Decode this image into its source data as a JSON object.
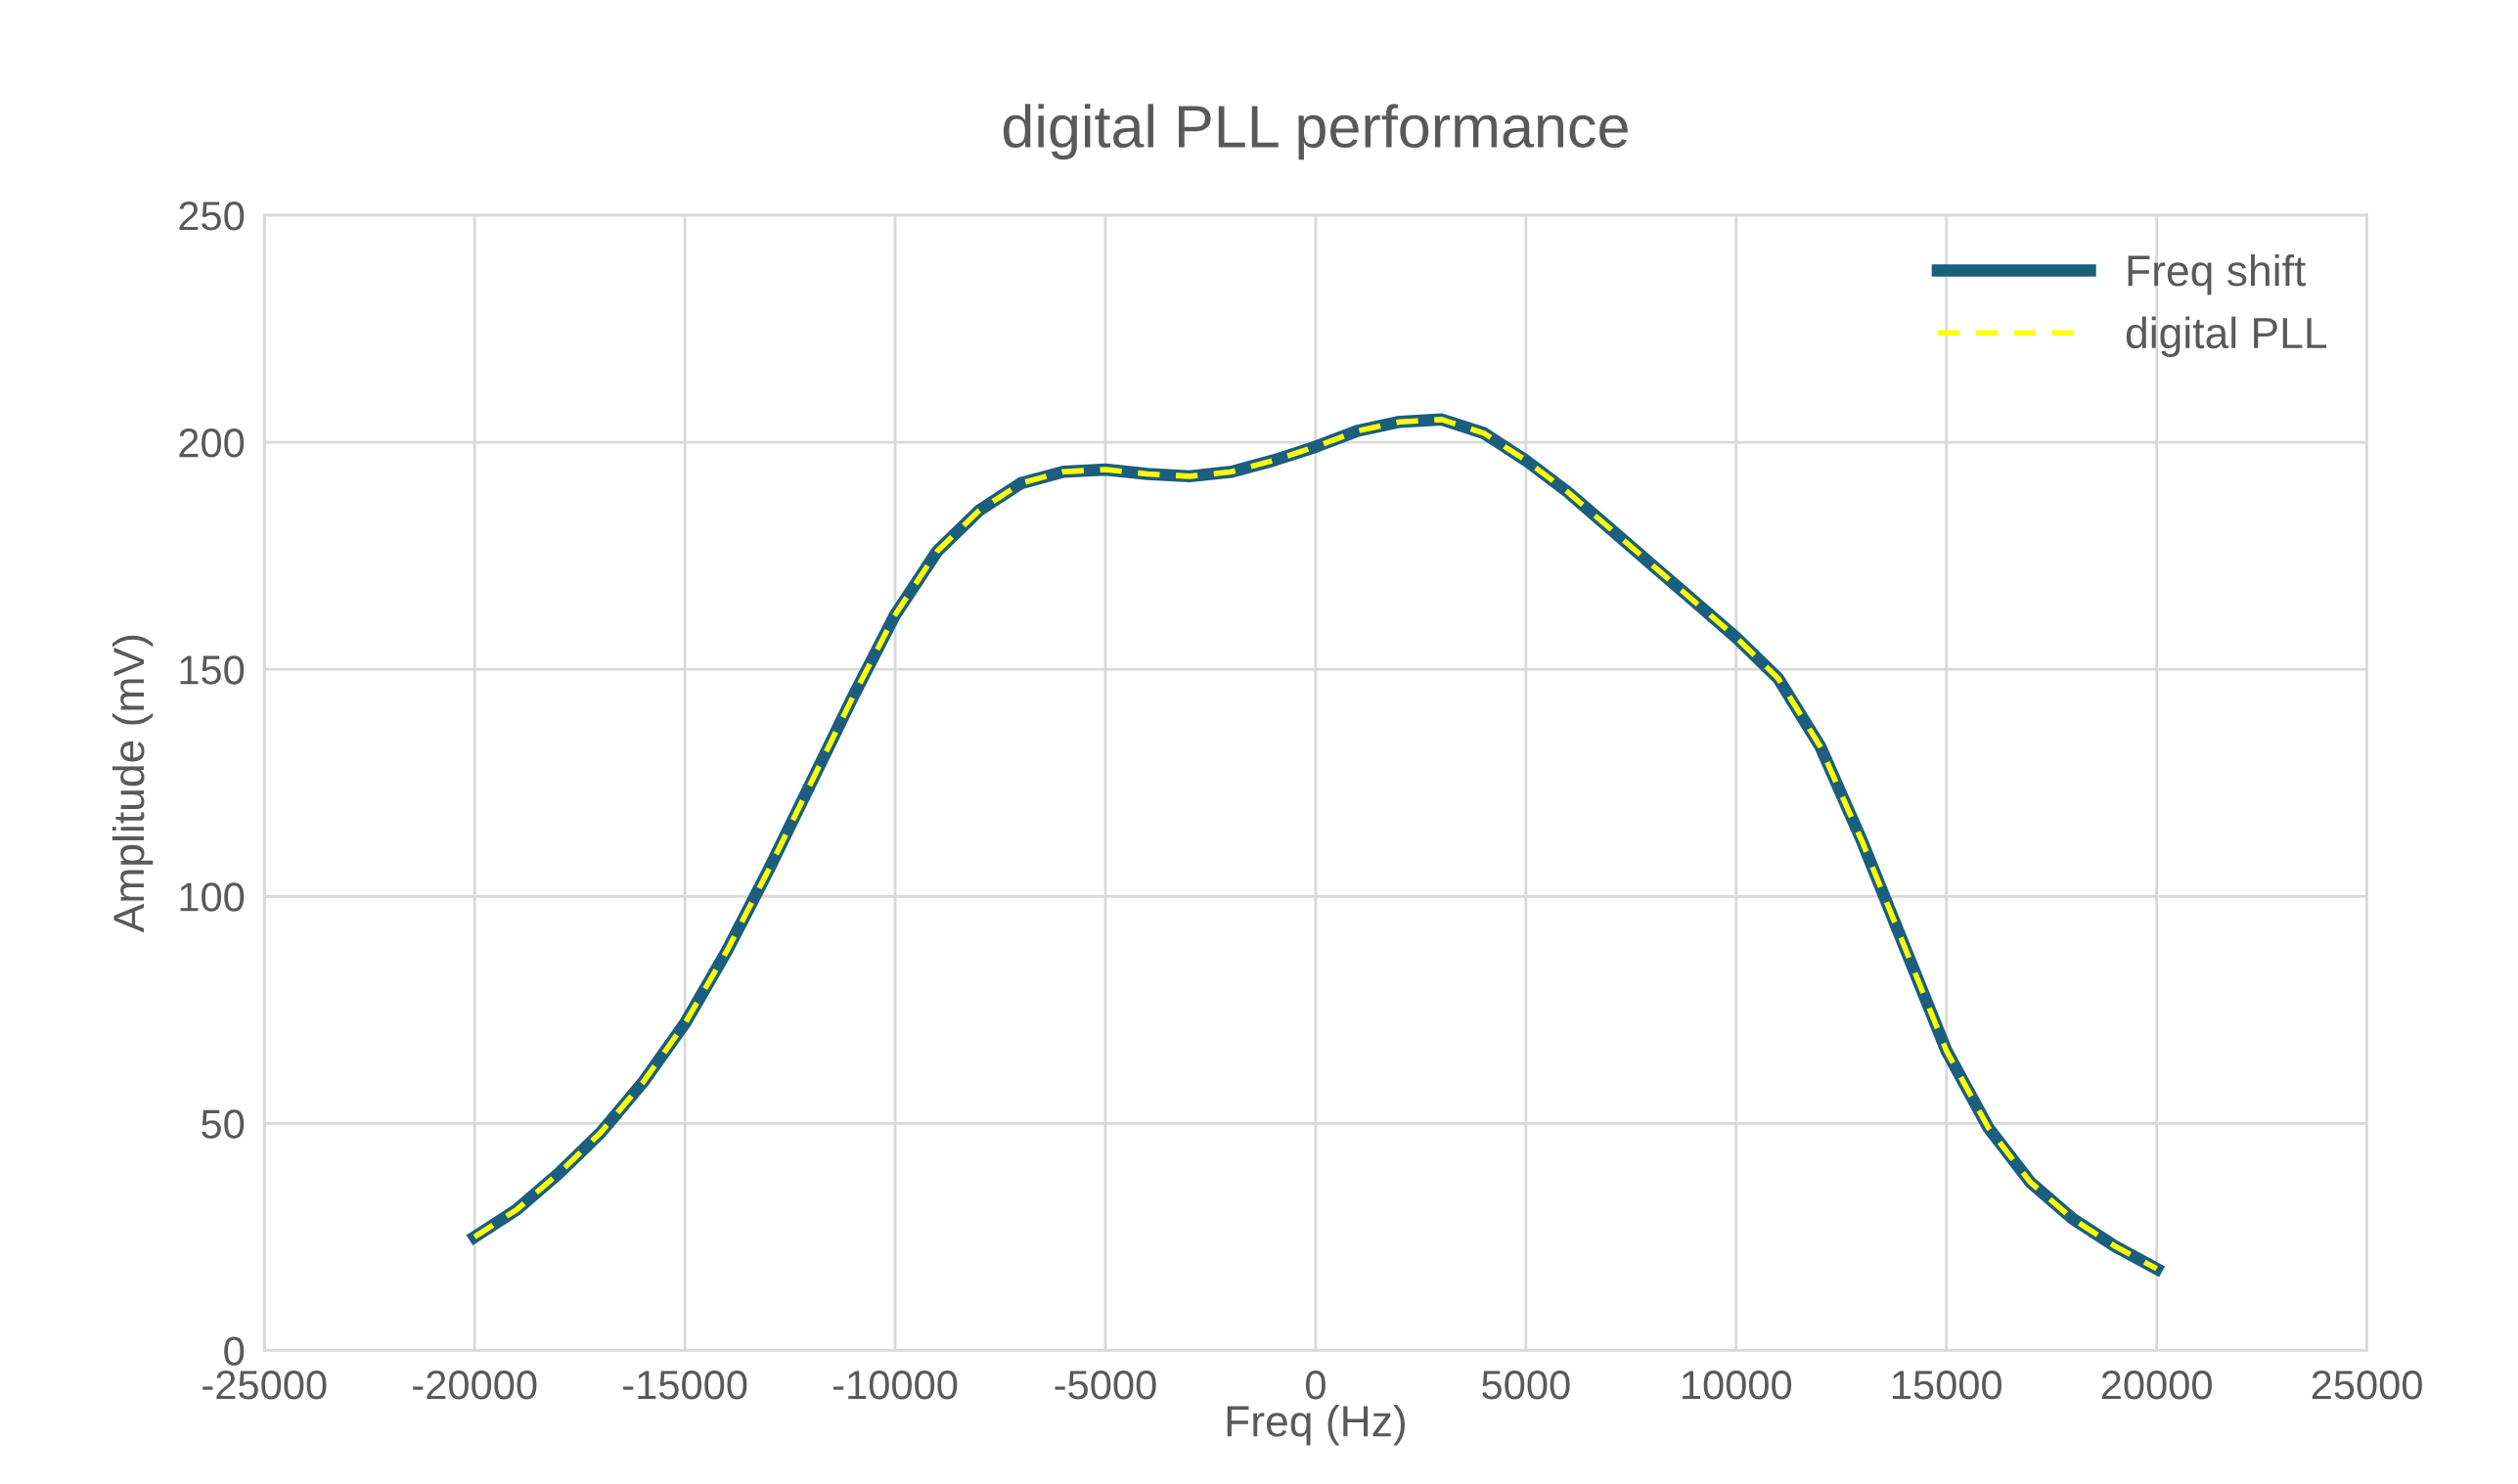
{
  "chart_data": {
    "type": "line",
    "title": "digital PLL performance",
    "xlabel": "Freq (Hz)",
    "ylabel": "Amplitude (mV)",
    "x": [
      -20000,
      -19000,
      -18000,
      -17000,
      -16000,
      -15000,
      -14000,
      -13000,
      -12000,
      -11000,
      -10000,
      -9000,
      -8000,
      -7000,
      -6000,
      -5000,
      -4000,
      -3000,
      -2000,
      -1000,
      0,
      1000,
      2000,
      3000,
      4000,
      5000,
      6000,
      7000,
      8000,
      9000,
      10000,
      11000,
      12000,
      13000,
      14000,
      15000,
      16000,
      17000,
      18000,
      19000,
      20000
    ],
    "series": [
      {
        "name": "Freq shift",
        "color": "#1b5e7e",
        "line_style": "solid",
        "values": [
          25,
          31,
          39,
          48,
          59,
          72,
          88,
          106,
          125,
          144,
          162,
          176,
          185,
          191,
          193.5,
          194,
          193,
          192.5,
          193.5,
          196,
          199,
          202.5,
          204.5,
          205,
          202,
          196,
          189,
          181,
          173,
          165,
          157,
          148,
          133,
          112,
          89,
          66,
          49,
          37,
          29,
          23,
          18
        ]
      },
      {
        "name": "digital PLL",
        "color": "#ffff00",
        "line_style": "dashed",
        "values": [
          25,
          31,
          39,
          48,
          59,
          72,
          88,
          106,
          125,
          144,
          162,
          176,
          185,
          191,
          193.5,
          194,
          193,
          192.5,
          193.5,
          196,
          199,
          202.5,
          204.5,
          205,
          202,
          196,
          189,
          181,
          173,
          165,
          157,
          148,
          133,
          112,
          89,
          66,
          49,
          37,
          29,
          23,
          18
        ]
      }
    ],
    "xlim": [
      -25000,
      25000
    ],
    "xticks": [
      -25000,
      -20000,
      -15000,
      -10000,
      -5000,
      0,
      5000,
      10000,
      15000,
      20000,
      25000
    ],
    "ylim": [
      0,
      250
    ],
    "yticks": [
      0,
      50,
      100,
      150,
      200,
      250
    ],
    "grid": true,
    "legend": "top right",
    "marker": "none"
  }
}
